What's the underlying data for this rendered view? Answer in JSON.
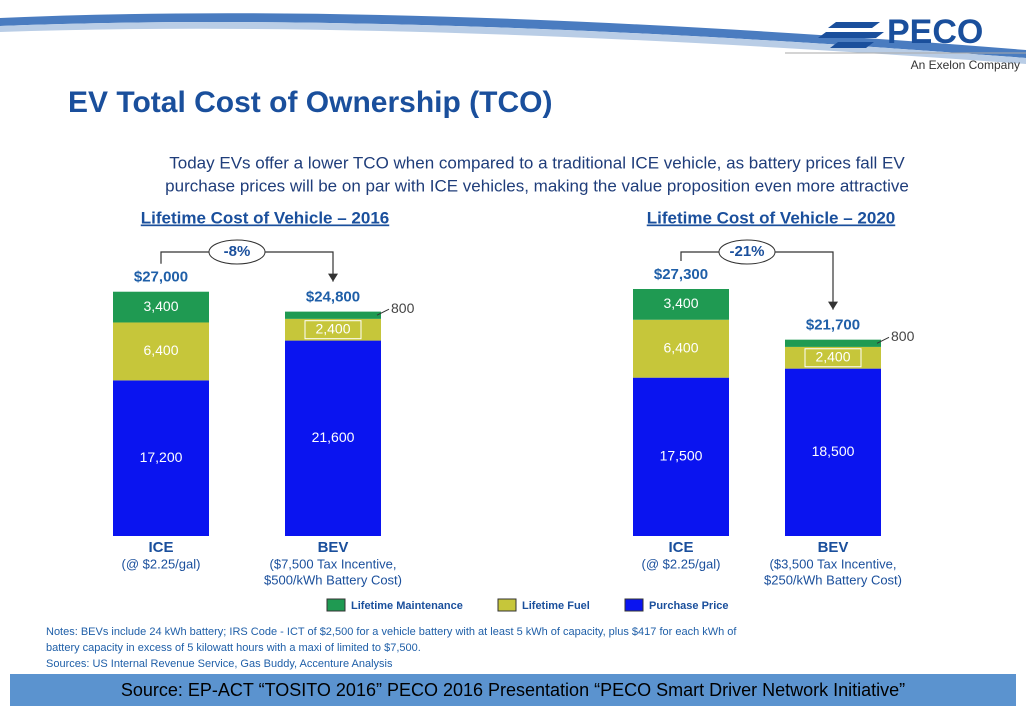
{
  "header": {
    "logo": "PECO",
    "logo_tagline": "An Exelon Company",
    "title": "EV Total Cost of Ownership (TCO)",
    "subtitle_lines": [
      "Today EVs offer a lower TCO when compared to a traditional ICE vehicle, as battery prices fall EV",
      "purchase prices will be on par with ICE vehicles, making the value proposition even more attractive"
    ]
  },
  "chart_data": [
    {
      "type": "bar",
      "stacked": true,
      "title": "Lifetime Cost of Vehicle – 2016",
      "categories": [
        "ICE",
        "BEV"
      ],
      "category_notes": [
        [
          "(@ $2.25/gal)"
        ],
        [
          "($7,500 Tax Incentive,",
          "$500/kWh Battery Cost)"
        ]
      ],
      "series": [
        {
          "name": "Lifetime Maintenance",
          "color": "#1f9a52",
          "values": [
            3400,
            800
          ],
          "value_labels": [
            "3,400",
            "800"
          ]
        },
        {
          "name": "Lifetime Fuel",
          "color": "#c6c63a",
          "values": [
            6400,
            2400
          ],
          "value_labels": [
            "6,400",
            "2,400"
          ]
        },
        {
          "name": "Purchase Price",
          "color": "#0a14f0",
          "values": [
            17200,
            21600
          ],
          "value_labels": [
            "17,200",
            "21,600"
          ]
        }
      ],
      "totals": [
        27000,
        24800
      ],
      "total_labels": [
        "$27,000",
        "$24,800"
      ],
      "annotation": "-8%"
    },
    {
      "type": "bar",
      "stacked": true,
      "title": "Lifetime Cost of Vehicle – 2020",
      "categories": [
        "ICE",
        "BEV"
      ],
      "category_notes": [
        [
          "(@ $2.25/gal)"
        ],
        [
          "($3,500 Tax Incentive,",
          "$250/kWh Battery Cost)"
        ]
      ],
      "series": [
        {
          "name": "Lifetime Maintenance",
          "color": "#1f9a52",
          "values": [
            3400,
            800
          ],
          "value_labels": [
            "3,400",
            "800"
          ]
        },
        {
          "name": "Lifetime Fuel",
          "color": "#c6c63a",
          "values": [
            6400,
            2400
          ],
          "value_labels": [
            "6,400",
            "2,400"
          ]
        },
        {
          "name": "Purchase Price",
          "color": "#0a14f0",
          "values": [
            17500,
            18500
          ],
          "value_labels": [
            "17,500",
            "18,500"
          ]
        }
      ],
      "totals": [
        27300,
        21700
      ],
      "total_labels": [
        "$27,300",
        "$21,700"
      ],
      "annotation": "-21%"
    }
  ],
  "notes": [
    "Notes: BEVs include 24 kWh battery; IRS Code - ICT of $2,500 for a vehicle battery with at least 5 kWh of capacity, plus $417 for each kWh of",
    "battery capacity in excess of 5 kilowatt hours with a maxi of limited to $7,500.",
    "Sources:  US Internal Revenue Service, Gas Buddy, Accenture Analysis"
  ],
  "source": "Source: EP-ACT “TOSITO 2016”  PECO 2016 Presentation “PECO Smart Driver Network Initiative”"
}
